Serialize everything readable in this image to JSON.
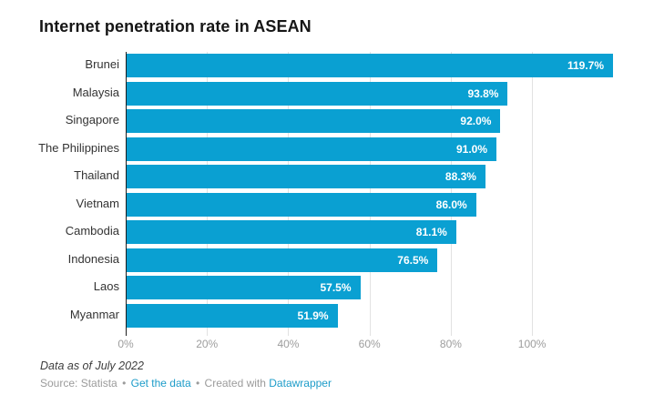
{
  "title": "Internet penetration rate in ASEAN",
  "chart_data": {
    "type": "bar",
    "orientation": "horizontal",
    "title": "Internet penetration rate in ASEAN",
    "categories": [
      "Brunei",
      "Malaysia",
      "Singapore",
      "The Philippines",
      "Thailand",
      "Vietnam",
      "Cambodia",
      "Indonesia",
      "Laos",
      "Myanmar"
    ],
    "values": [
      119.7,
      93.8,
      92.0,
      91.0,
      88.3,
      86.0,
      81.1,
      76.5,
      57.5,
      51.9
    ],
    "value_labels": [
      "119.7%",
      "93.8%",
      "92.0%",
      "91.0%",
      "88.3%",
      "86.0%",
      "81.1%",
      "76.5%",
      "57.5%",
      "51.9%"
    ],
    "x_ticks": [
      "0%",
      "20%",
      "40%",
      "60%",
      "80%",
      "100%"
    ],
    "x_tick_values": [
      0,
      20,
      40,
      60,
      80,
      100
    ],
    "xlim": [
      0,
      130
    ],
    "grid": true,
    "legend": "none",
    "bar_color": "#0aa0d2",
    "axis_line_color": "#1f1f1f",
    "gridline_color": "#e2e2e2",
    "tick_label_color": "#9d9d9d"
  },
  "footer": {
    "note": "Data as of July 2022",
    "source_prefix": "Source: Statista",
    "separator": "•",
    "link_get_data": "Get the data",
    "created_with": "Created with",
    "link_datawrapper": "Datawrapper",
    "link_color": "#1d9cc9"
  }
}
